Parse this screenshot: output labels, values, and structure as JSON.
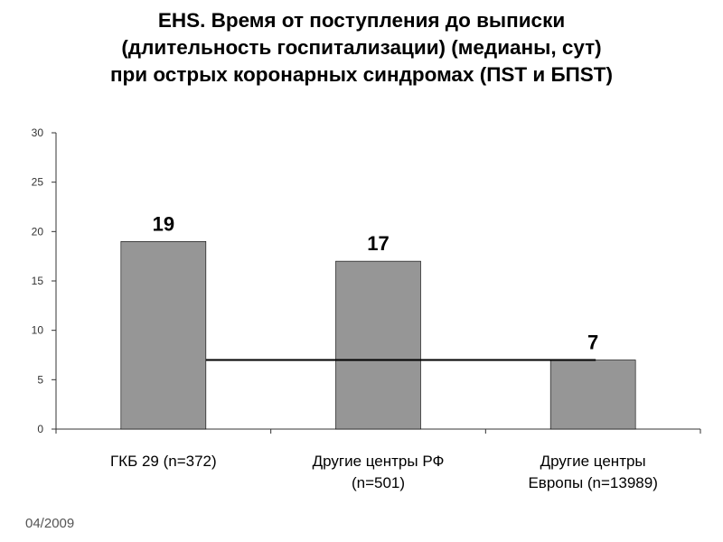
{
  "chart_data": {
    "type": "bar",
    "title": "EHS. Время от поступления до выписки (длительность госпитализации) (медианы, сут) при острых коронарных синдромах (ПST и БПST)",
    "title_lines": [
      "EHS. Время от поступления до выписки",
      "(длительность госпитализации) (медианы, сут)",
      "при острых коронарных синдромах (ПST и БПST)"
    ],
    "categories": [
      [
        "ГКБ 29 (n=372)"
      ],
      [
        "Другие центры РФ",
        "(n=501)"
      ],
      [
        "Другие центры",
        "Европы (n=13989)"
      ]
    ],
    "values": [
      19,
      17,
      7
    ],
    "data_labels": [
      "19",
      "17",
      "7"
    ],
    "ylim": [
      0,
      30
    ],
    "yticks": [
      0,
      5,
      10,
      15,
      20,
      25,
      30
    ],
    "xlabel": "",
    "ylabel": "",
    "reference_line": {
      "value": 7
    },
    "grid": false,
    "legend": "none",
    "colors": {
      "bar_fill": "#969696",
      "bar_stroke": "#000000",
      "axis": "#333333",
      "reference_line": "#000000",
      "tick_text": "#333333"
    }
  },
  "footer": {
    "date": "04/2009"
  }
}
